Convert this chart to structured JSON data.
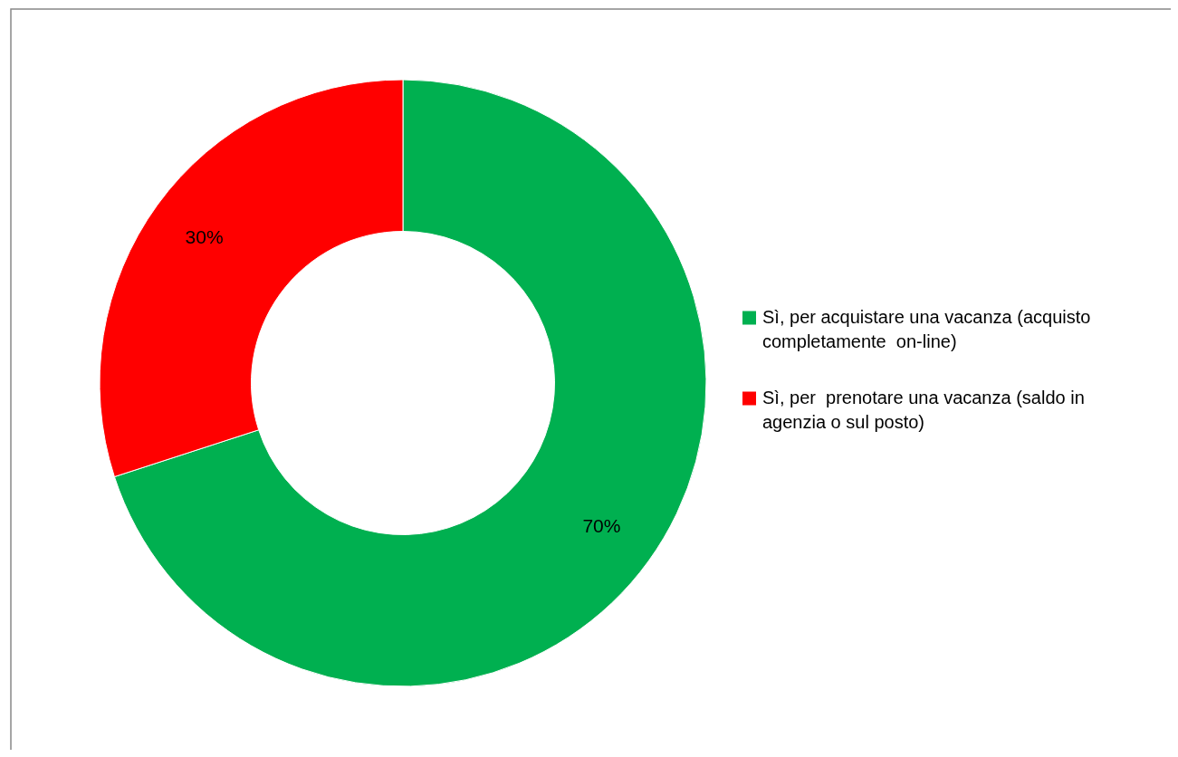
{
  "chart_data": {
    "type": "donut",
    "categories": [
      "Sì, per acquistare una vacanza (acquisto completamente  on-line)",
      "Sì, per  prenotare una vacanza (saldo in agenzia o sul posto)"
    ],
    "values": [
      70,
      30
    ],
    "colors": [
      "#00b050",
      "#ff0000"
    ],
    "value_labels": [
      "70%",
      "30%"
    ],
    "legend": "right"
  }
}
